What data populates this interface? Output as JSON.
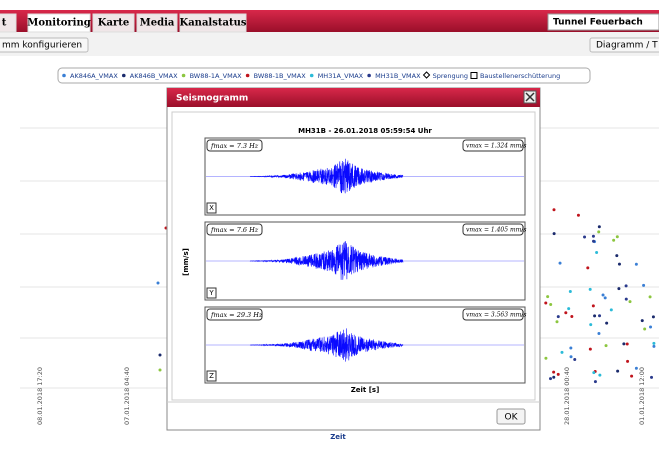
{
  "tabs": [
    "t",
    "Monitoring",
    "Karte",
    "Media",
    "Kanalstatus"
  ],
  "location_select": "Tunnel Feuerbach",
  "toolbar": {
    "left_button": "mm konfigurieren",
    "right_button": "Diagramm / T"
  },
  "legend": [
    {
      "name": "AK846A_VMAX",
      "color": "#3a7fd5"
    },
    {
      "name": "AK846B_VMAX",
      "color": "#1a2a6c"
    },
    {
      "name": "BW88-1A_VMAX",
      "color": "#8cc63f"
    },
    {
      "name": "BW88-1B_VMAX",
      "color": "#c0141c"
    },
    {
      "name": "MH31A_VMAX",
      "color": "#2bbbd8"
    },
    {
      "name": "MH31B_VMAX",
      "color": "#2a3a8c"
    },
    {
      "name": "Sprengung",
      "color": "#000000"
    },
    {
      "name": "Baustellenerschütterung",
      "color": "#000000"
    }
  ],
  "background_chart": {
    "x_labels": [
      "08.01.2018 17:20",
      "07.01.2018 04:40",
      "28.01.2018 00:40",
      "01.01.2018 12:00"
    ],
    "x_axis_label": "Zeit"
  },
  "dialog": {
    "title": "Seismogramm",
    "chart_title": "MH31B - 26.01.2018 05:59:54 Uhr",
    "y_axis_label": "[mm/s]",
    "x_axis_label": "Zeit [s]",
    "panels": [
      {
        "axis": "X",
        "f_max": "fmax = 7.3 Hz",
        "v_max": "vmax = 1.324 mm/s"
      },
      {
        "axis": "Y",
        "f_max": "fmax = 7.6 Hz",
        "v_max": "vmax = 1.405 mm/s"
      },
      {
        "axis": "Z",
        "f_max": "fmax = 29.3 Hz",
        "v_max": "vmax = 3.563 mm/s"
      }
    ],
    "ok_button": "OK"
  }
}
